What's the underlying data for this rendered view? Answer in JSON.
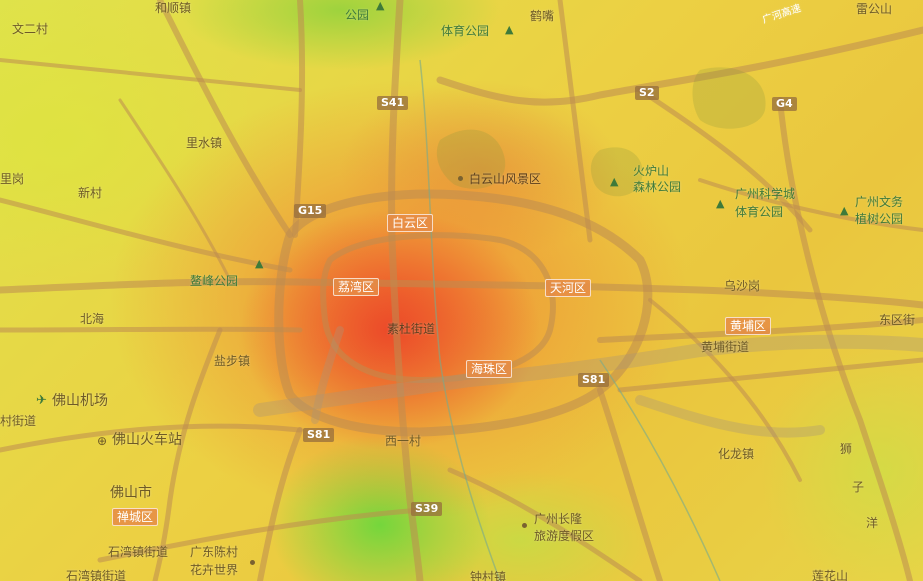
{
  "map": {
    "labels": {
      "wenercun": "文二村",
      "heshunzhen": "和顺镇",
      "baiyunhu_park": "公园",
      "tiyu_park": "体育公园",
      "hezui": "鹤嘴",
      "leigongshan": "雷公山",
      "lishuizhen": "里水镇",
      "ligang": "里岗",
      "xincun": "新村",
      "baiyunshan": "白云山风景区",
      "huolushan_1": "火炉山",
      "huolushan_2": "森林公园",
      "kexuecheng_1": "广州科学城",
      "kexuecheng_2": "体育公园",
      "wenyi_1": "广州文务",
      "wenyi_2": "植树公园",
      "aofeng_park": "鳌峰公园",
      "wushagang": "乌沙岗",
      "beihai": "北海",
      "sudujiedao": "素杜街道",
      "huangpujiedao": "黄埔街道",
      "dongqujie": "东区街",
      "yanbuzhen": "盐步镇",
      "foshan_airport": "佛山机场",
      "cunjiedao": "村街道",
      "foshan_station": "佛山火车站",
      "xiyicun": "西一村",
      "hualongzhen": "化龙镇",
      "foshanshi": "佛山市",
      "shiwanzhen": "石湾镇街道",
      "chenhua_1": "广东陈村",
      "chenhua_2": "花卉世界",
      "changlong_1": "广州长隆",
      "changlong_2": "旅游度假区",
      "shiwanzhenjiedao_2": "石湾镇街道",
      "zhongcun": "钟村镇",
      "lianhuashan": "莲花山",
      "shizi_1": "狮",
      "shizi_2": "子",
      "shizi_3": "洋",
      "guangshen": "广河高速"
    },
    "districts": {
      "baiyun": "白云区",
      "liwan": "荔湾区",
      "tianhe": "天河区",
      "haizhu": "海珠区",
      "huangpu": "黄埔区",
      "chancheng": "禅城区"
    },
    "highways": {
      "s41": "S41",
      "s2": "S2",
      "g4": "G4",
      "g15": "G15",
      "s81_left": "S81",
      "s81_right": "S81",
      "s39": "S39"
    },
    "icons": {
      "park": "tree-icon",
      "airport": "airplane-icon",
      "station": "train-station-icon",
      "poi": "poi-dot-icon"
    },
    "colors": {
      "heat_high": "#ec4628",
      "heat_mid": "#f0a040",
      "heat_low": "#e6d84a",
      "heat_cool": "#6ed73c",
      "road": "#c8a060"
    }
  }
}
